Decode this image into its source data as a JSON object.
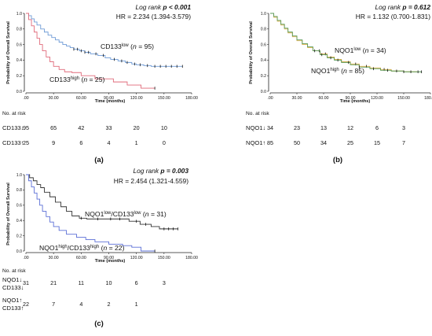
{
  "figure": {
    "panels": [
      {
        "id": "a",
        "panel_label": "(a)",
        "stat_line1_prefix": "Log rank ",
        "stat_line1_p": "p < 0.001",
        "stat_line2": "HR = 2.234 (1.394-3.579)",
        "ylabel": "Probability of Overall Survival",
        "xlabel": "Time (months)",
        "curve_labels": [
          {
            "base": "CD133",
            "sup": "low",
            "rest": " (",
            "n": "n",
            "tail": " = 95)"
          },
          {
            "base": "CD133",
            "sup": "high",
            "rest": " (",
            "n": "n",
            "tail": " = 25)"
          }
        ],
        "risk_title": "No. at risk",
        "risk_rows": [
          {
            "label": "CD133↓",
            "values": [
              "95",
              "65",
              "42",
              "33",
              "20",
              "10"
            ]
          },
          {
            "label": "CD133↑",
            "values": [
              "25",
              "9",
              "6",
              "4",
              "1",
              "0"
            ]
          }
        ]
      },
      {
        "id": "b",
        "panel_label": "(b)",
        "stat_line1_prefix": "Log rank ",
        "stat_line1_p": "p = 0.612",
        "stat_line2": "HR = 1.132 (0.700-1.831)",
        "ylabel": "Probability of Overall Survival",
        "xlabel": "Time (months)",
        "curve_labels": [
          {
            "base": "NQO1",
            "sup": "low",
            "rest": " (",
            "n": "n",
            "tail": " = 34)"
          },
          {
            "base": "NQO1",
            "sup": "high",
            "rest": " (",
            "n": "n",
            "tail": " = 85)"
          }
        ],
        "risk_title": "No. at risk",
        "risk_rows": [
          {
            "label": "NQO1↓",
            "values": [
              "34",
              "23",
              "13",
              "12",
              "6",
              "3"
            ]
          },
          {
            "label": "NQO1↑",
            "values": [
              "85",
              "50",
              "34",
              "25",
              "15",
              "7"
            ]
          }
        ]
      },
      {
        "id": "c",
        "panel_label": "(c)",
        "stat_line1_prefix": "Log rank ",
        "stat_line1_p": "p = 0.003",
        "stat_line2": "HR = 2.454 (1.321-4.559)",
        "ylabel": "Probability of Overall Survival",
        "xlabel": "Time (months)",
        "curve_labels": [
          {
            "base": "NQO1",
            "sup": "low",
            "rest": "/CD133",
            "sup2": "low",
            "rest2": " (",
            "n": "n",
            "tail": " = 31)"
          },
          {
            "base": "NQO1",
            "sup": "high",
            "rest": "/CD133",
            "sup2": "high",
            "rest2": " (",
            "n": "n",
            "tail": " = 22)"
          }
        ],
        "risk_title": "No. at risk",
        "risk_rows": [
          {
            "label1": "NQO1↓",
            "label2": "CD133↓",
            "values": [
              "31",
              "21",
              "11",
              "10",
              "6",
              "3"
            ]
          },
          {
            "label1": "NQO1↑",
            "label2": "CD133↑",
            "values": [
              "22",
              "7",
              "4",
              "2",
              "1",
              ""
            ]
          }
        ]
      }
    ]
  },
  "chart_data": [
    {
      "type": "line",
      "panel": "a",
      "title": "",
      "xlabel": "Time (months)",
      "ylabel": "Probability of Overall Survival",
      "x_ticks": [
        ".00",
        "30.00",
        "60.00",
        "90.00",
        "120.00",
        "150.00",
        "180.00"
      ],
      "y_ticks": [
        "0.0",
        "0.2",
        "0.4",
        "0.6",
        "0.8",
        "1.0"
      ],
      "xlim": [
        0,
        180
      ],
      "ylim": [
        0,
        1
      ],
      "colors": {
        "CD133 low": "#6f9bd6",
        "CD133 high": "#e06a7a"
      },
      "series": [
        {
          "key": "CD133 low",
          "x": [
            0,
            3,
            6,
            9,
            12,
            16,
            20,
            24,
            28,
            32,
            36,
            40,
            44,
            48,
            52,
            58,
            64,
            70,
            78,
            86,
            92,
            100,
            108,
            115,
            120,
            128,
            136,
            150,
            170
          ],
          "y": [
            1.0,
            0.97,
            0.93,
            0.89,
            0.85,
            0.8,
            0.76,
            0.72,
            0.69,
            0.66,
            0.63,
            0.6,
            0.58,
            0.56,
            0.54,
            0.52,
            0.5,
            0.48,
            0.46,
            0.43,
            0.41,
            0.39,
            0.37,
            0.35,
            0.34,
            0.33,
            0.32,
            0.32,
            0.32
          ],
          "censors_x": [
            52,
            56,
            60,
            64,
            68,
            76,
            84,
            96,
            104,
            110,
            118,
            124,
            132,
            140,
            146,
            152,
            158,
            164,
            170
          ]
        },
        {
          "key": "CD133 high",
          "x": [
            0,
            3,
            6,
            9,
            12,
            15,
            18,
            22,
            26,
            30,
            36,
            42,
            50,
            60,
            75,
            95,
            110,
            125,
            140
          ],
          "y": [
            1.0,
            0.92,
            0.84,
            0.76,
            0.68,
            0.6,
            0.52,
            0.44,
            0.38,
            0.32,
            0.28,
            0.25,
            0.24,
            0.2,
            0.16,
            0.12,
            0.08,
            0.04,
            0.04
          ],
          "censors_x": [
            140
          ]
        }
      ]
    },
    {
      "type": "line",
      "panel": "b",
      "title": "",
      "xlabel": "Time (months)",
      "ylabel": "Probability of Overall Survival",
      "x_ticks": [
        ".00",
        "30.00",
        "60.00",
        "90.00",
        "120.00",
        "150.00",
        "180.00"
      ],
      "y_ticks": [
        "0.0",
        "0.2",
        "0.4",
        "0.6",
        "0.8",
        "1.0"
      ],
      "xlim": [
        0,
        180
      ],
      "ylim": [
        0,
        1
      ],
      "colors": {
        "NQO1 low": "#e0b04a",
        "NQO1 high": "#5a9a5a"
      },
      "series": [
        {
          "key": "NQO1 low",
          "x": [
            0,
            4,
            8,
            12,
            16,
            20,
            25,
            30,
            36,
            42,
            48,
            56,
            64,
            72,
            80,
            90,
            100,
            112,
            124,
            136,
            150,
            165
          ],
          "y": [
            1.0,
            0.95,
            0.9,
            0.85,
            0.8,
            0.75,
            0.7,
            0.65,
            0.6,
            0.56,
            0.52,
            0.48,
            0.44,
            0.41,
            0.38,
            0.35,
            0.32,
            0.3,
            0.28,
            0.26,
            0.25,
            0.25
          ],
          "censors_x": [
            55,
            62,
            96,
            108,
            128
          ]
        },
        {
          "key": "NQO1 high",
          "x": [
            0,
            4,
            8,
            12,
            16,
            20,
            25,
            30,
            36,
            42,
            48,
            56,
            64,
            72,
            80,
            90,
            100,
            112,
            124,
            136,
            150,
            170
          ],
          "y": [
            1.0,
            0.96,
            0.91,
            0.86,
            0.81,
            0.76,
            0.71,
            0.66,
            0.61,
            0.57,
            0.52,
            0.47,
            0.43,
            0.4,
            0.37,
            0.34,
            0.31,
            0.29,
            0.27,
            0.26,
            0.25,
            0.25
          ],
          "censors_x": [
            50,
            58,
            68,
            76,
            88,
            100,
            116,
            132,
            142,
            150,
            158,
            166,
            170
          ]
        }
      ]
    },
    {
      "type": "line",
      "panel": "c",
      "title": "",
      "xlabel": "Time (months)",
      "ylabel": "Probability of Overall Survival",
      "x_ticks": [
        ".00",
        "30.00",
        "60.00",
        "90.00",
        "120.00",
        "150.00",
        "180.00"
      ],
      "y_ticks": [
        "0.0",
        "0.2",
        "0.4",
        "0.6",
        "0.8",
        "1.0"
      ],
      "xlim": [
        0,
        180
      ],
      "ylim": [
        0,
        1
      ],
      "colors": {
        "NQO1 low/CD133 low": "#333333",
        "NQO1 high/CD133 high": "#5b6fd6"
      },
      "series": [
        {
          "key": "NQO1 low/CD133 low",
          "x": [
            0,
            4,
            8,
            12,
            16,
            20,
            26,
            32,
            38,
            44,
            50,
            58,
            66,
            76,
            88,
            100,
            112,
            124,
            136,
            145,
            150,
            165
          ],
          "y": [
            1.0,
            0.96,
            0.92,
            0.87,
            0.83,
            0.77,
            0.71,
            0.64,
            0.58,
            0.52,
            0.46,
            0.43,
            0.42,
            0.42,
            0.42,
            0.42,
            0.39,
            0.35,
            0.32,
            0.29,
            0.29,
            0.29
          ],
          "censors_x": [
            60,
            78,
            92,
            102,
            120,
            130,
            150,
            155,
            160,
            165
          ]
        },
        {
          "key": "NQO1 high/CD133 high",
          "x": [
            0,
            3,
            6,
            9,
            12,
            15,
            18,
            22,
            26,
            30,
            36,
            44,
            55,
            65,
            75,
            90,
            105,
            115,
            125,
            140
          ],
          "y": [
            1.0,
            0.92,
            0.84,
            0.76,
            0.68,
            0.6,
            0.52,
            0.45,
            0.38,
            0.32,
            0.27,
            0.22,
            0.18,
            0.15,
            0.12,
            0.09,
            0.07,
            0.05,
            0.0,
            0.0
          ],
          "censors_x": [
            140
          ]
        }
      ]
    }
  ]
}
